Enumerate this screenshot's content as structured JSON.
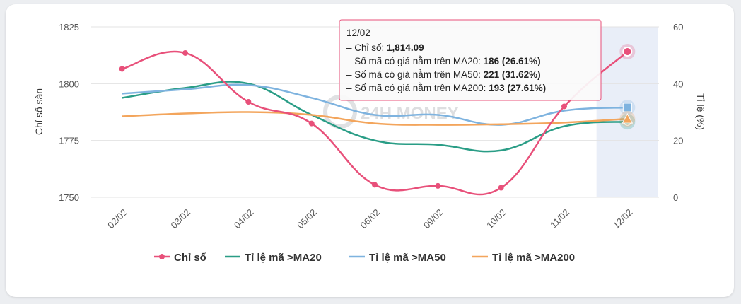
{
  "chart_data": {
    "type": "line",
    "categories": [
      "02/02",
      "03/02",
      "04/02",
      "05/02",
      "06/02",
      "09/02",
      "10/02",
      "11/02",
      "12/02"
    ],
    "y_left": {
      "label": "Chỉ số sàn",
      "ticks": [
        "1825",
        "1800",
        "1775",
        "1750"
      ],
      "min": 1750,
      "max": 1825
    },
    "y_right": {
      "label": "Tỉ lệ (%)",
      "ticks": [
        "60",
        "40",
        "20",
        "0"
      ],
      "min": 0,
      "max": 60
    },
    "series": [
      {
        "name": "Chỉ số",
        "axis": "left",
        "color": "#e8507a",
        "marker": "circle",
        "values": [
          1806.5,
          1813.5,
          1792,
          1782.5,
          1755.5,
          1755,
          1754.2,
          1790,
          1814.09
        ]
      },
      {
        "name": "Tỉ lệ mã >MA20",
        "axis": "right",
        "color": "#2a9d86",
        "marker": "circle",
        "values": [
          35,
          38.5,
          40,
          29,
          20,
          18.5,
          16.5,
          25,
          26.61
        ]
      },
      {
        "name": "Tỉ lệ mã >MA50",
        "axis": "right",
        "color": "#7eb3df",
        "marker": "square",
        "values": [
          36.5,
          38,
          39.5,
          35,
          29,
          29,
          25.5,
          30.5,
          31.62
        ]
      },
      {
        "name": "Tỉ lệ mã >MA200",
        "axis": "right",
        "color": "#f3a55c",
        "marker": "triangle",
        "values": [
          28.5,
          29.5,
          30,
          29,
          26,
          25.5,
          25.7,
          26.3,
          27.61
        ]
      }
    ],
    "highlight_index": 8
  },
  "tooltip": {
    "date": "12/02",
    "rows": [
      {
        "label": "– Chỉ số: ",
        "value": "1,814.09"
      },
      {
        "label": "– Số mã có giá nằm trên MA20: ",
        "value": "186 (26.61%)"
      },
      {
        "label": "– Số mã có giá nằm trên MA50: ",
        "value": "221 (31.62%)"
      },
      {
        "label": "– Số mã có giá nằm trên MA200: ",
        "value": "193 (27.61%)"
      }
    ]
  },
  "watermark": "24H MONEY",
  "colors": {
    "highlight_band": "#e9eef8",
    "tooltip_border": "#e8507a",
    "grid": "#e3e3e3"
  }
}
